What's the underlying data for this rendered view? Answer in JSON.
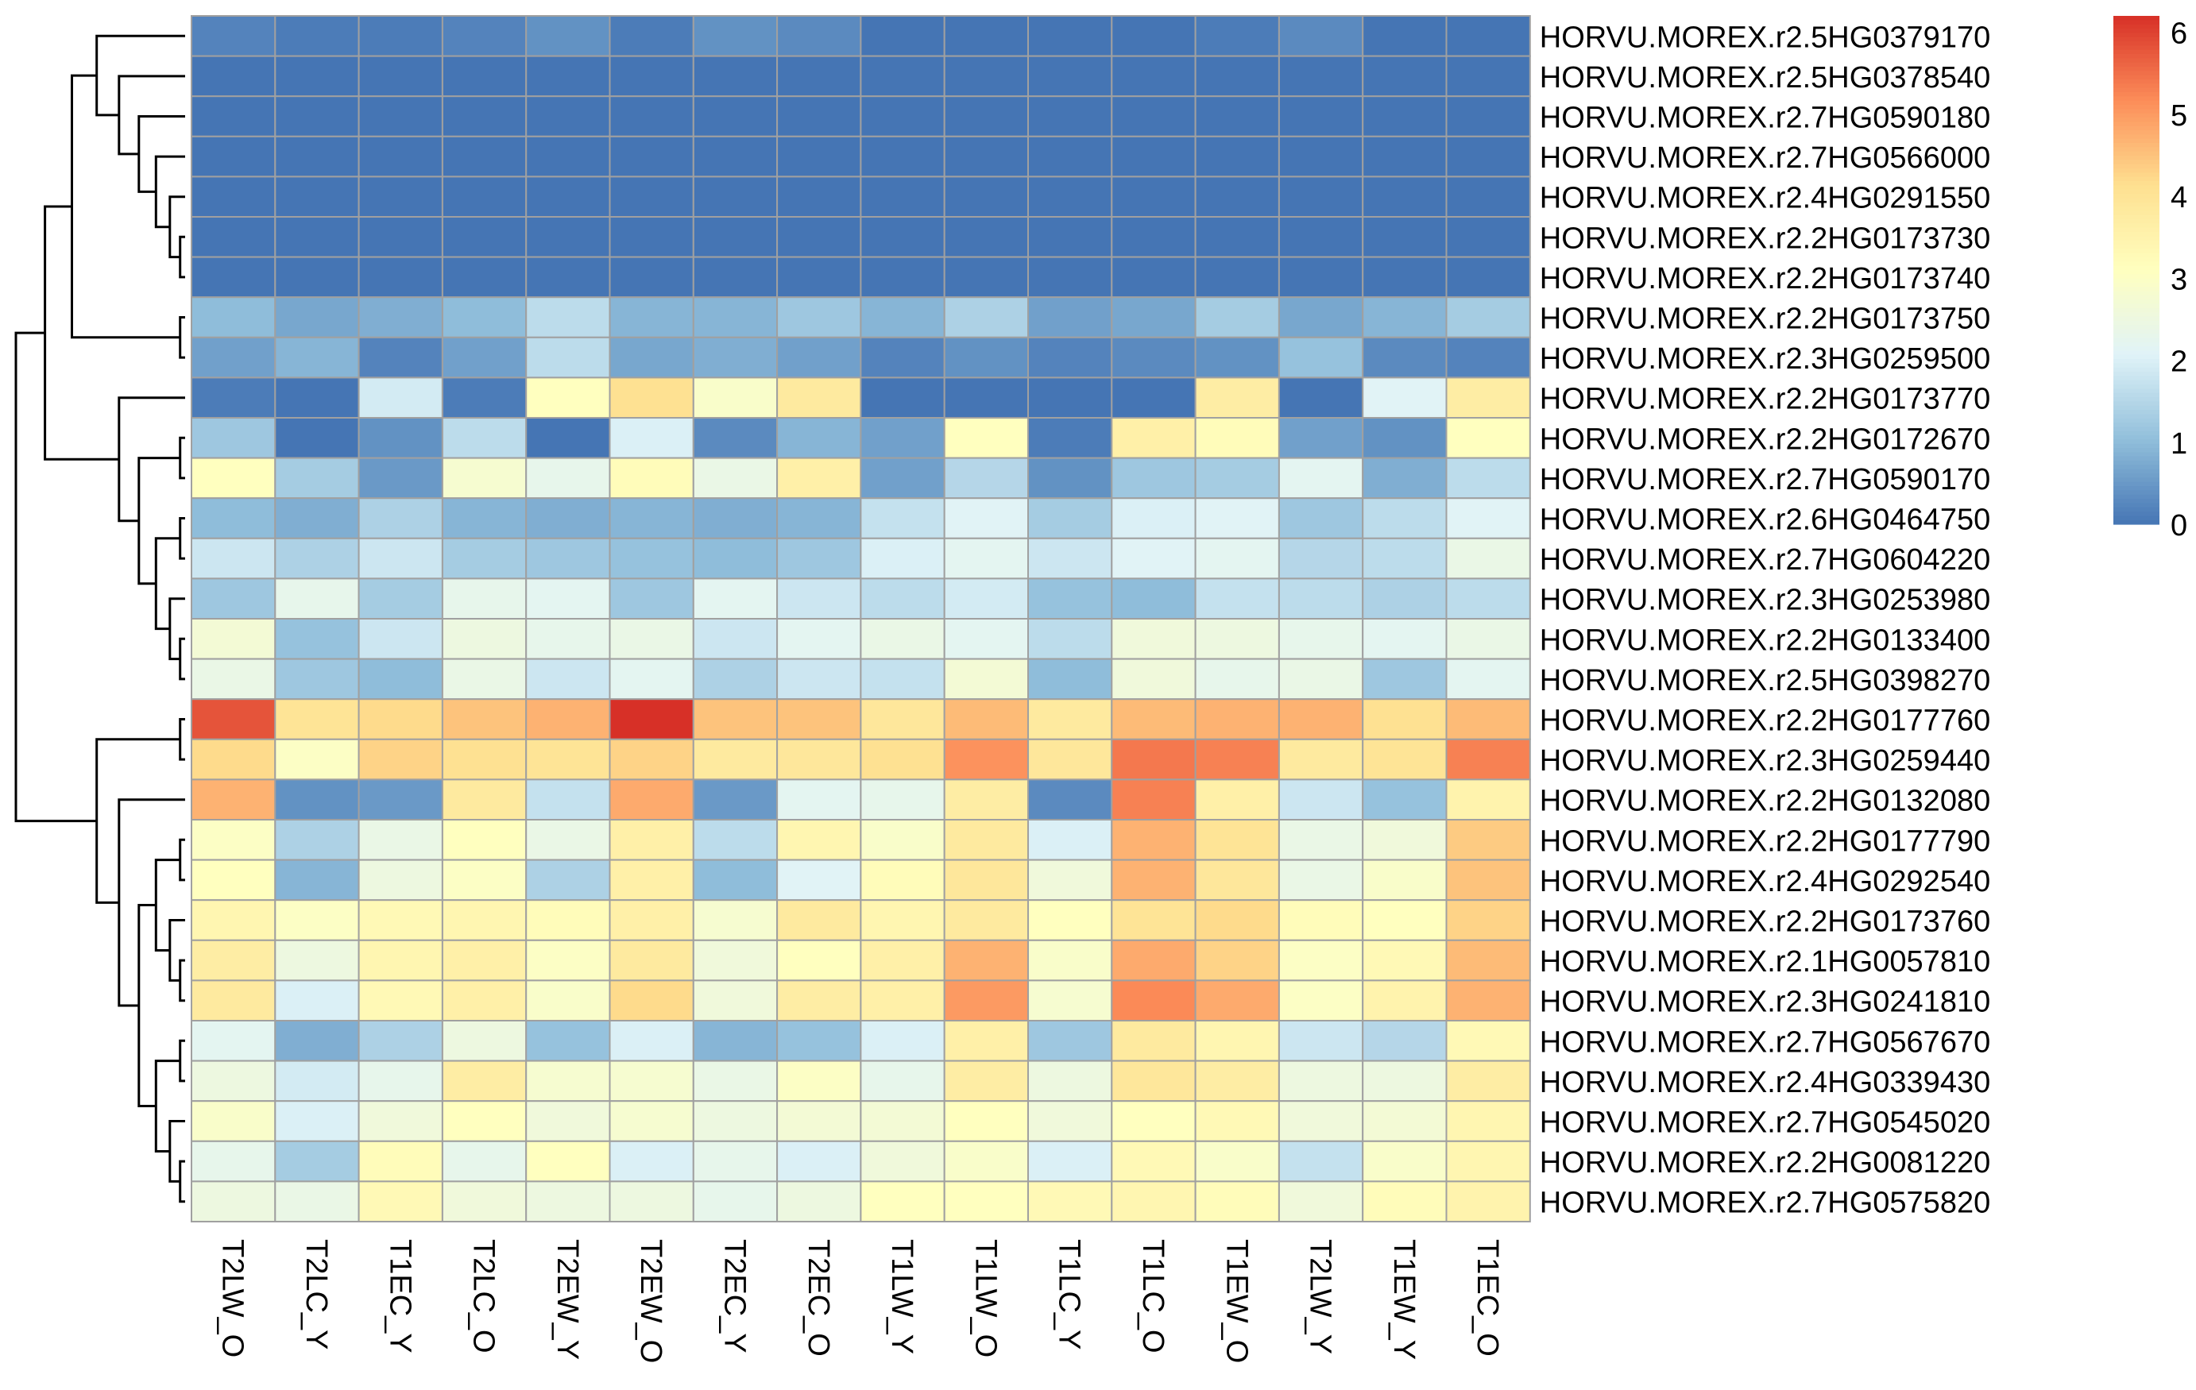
{
  "chart_data": {
    "type": "heatmap",
    "title": "",
    "xlabel": "",
    "ylabel": "",
    "columns": [
      "T2LW_O",
      "T2LC_Y",
      "T1EC_Y",
      "T2LC_O",
      "T2EW_Y",
      "T2EW_O",
      "T2EC_Y",
      "T2EC_O",
      "T1LW_Y",
      "T1LW_O",
      "T1LC_Y",
      "T1LC_O",
      "T1EW_O",
      "T2LW_Y",
      "T1EW_Y",
      "T1EC_O"
    ],
    "rows": [
      "HORVU.MOREX.r2.5HG0379170",
      "HORVU.MOREX.r2.5HG0378540",
      "HORVU.MOREX.r2.7HG0590180",
      "HORVU.MOREX.r2.7HG0566000",
      "HORVU.MOREX.r2.4HG0291550",
      "HORVU.MOREX.r2.2HG0173730",
      "HORVU.MOREX.r2.2HG0173740",
      "HORVU.MOREX.r2.2HG0173750",
      "HORVU.MOREX.r2.3HG0259500",
      "HORVU.MOREX.r2.2HG0173770",
      "HORVU.MOREX.r2.2HG0172670",
      "HORVU.MOREX.r2.7HG0590170",
      "HORVU.MOREX.r2.6HG0464750",
      "HORVU.MOREX.r2.7HG0604220",
      "HORVU.MOREX.r2.3HG0253980",
      "HORVU.MOREX.r2.2HG0133400",
      "HORVU.MOREX.r2.5HG0398270",
      "HORVU.MOREX.r2.2HG0177760",
      "HORVU.MOREX.r2.3HG0259440",
      "HORVU.MOREX.r2.2HG0132080",
      "HORVU.MOREX.r2.2HG0177790",
      "HORVU.MOREX.r2.4HG0292540",
      "HORVU.MOREX.r2.2HG0173760",
      "HORVU.MOREX.r2.1HG0057810",
      "HORVU.MOREX.r2.3HG0241810",
      "HORVU.MOREX.r2.7HG0567670",
      "HORVU.MOREX.r2.4HG0339430",
      "HORVU.MOREX.r2.7HG0545020",
      "HORVU.MOREX.r2.2HG0081220",
      "HORVU.MOREX.r2.7HG0575820"
    ],
    "values": [
      [
        0.2,
        0.1,
        0.1,
        0.2,
        0.4,
        0.1,
        0.4,
        0.3,
        0.0,
        0.0,
        0.0,
        0.0,
        0.1,
        0.3,
        0.0,
        0.0
      ],
      [
        0.0,
        0.0,
        0.0,
        0.0,
        0.0,
        0.0,
        0.0,
        0.0,
        0.0,
        0.0,
        0.0,
        0.0,
        0.0,
        0.0,
        0.0,
        0.0
      ],
      [
        0.0,
        0.0,
        0.0,
        0.0,
        0.0,
        0.0,
        0.0,
        0.0,
        0.0,
        0.0,
        0.0,
        0.0,
        0.0,
        0.0,
        0.0,
        0.0
      ],
      [
        0.0,
        0.0,
        0.0,
        0.0,
        0.0,
        0.0,
        0.0,
        0.0,
        0.0,
        0.0,
        0.0,
        0.0,
        0.0,
        0.0,
        0.0,
        0.0
      ],
      [
        0.0,
        0.0,
        0.0,
        0.0,
        0.0,
        0.0,
        0.0,
        0.0,
        0.0,
        0.0,
        0.0,
        0.0,
        0.0,
        0.0,
        0.0,
        0.0
      ],
      [
        0.0,
        0.0,
        0.0,
        0.0,
        0.0,
        0.0,
        0.0,
        0.0,
        0.0,
        0.0,
        0.0,
        0.0,
        0.0,
        0.0,
        0.0,
        0.0
      ],
      [
        0.0,
        0.0,
        0.0,
        0.0,
        0.0,
        0.0,
        0.0,
        0.0,
        0.0,
        0.0,
        0.0,
        0.0,
        0.0,
        0.0,
        0.0,
        0.0
      ],
      [
        1.0,
        0.7,
        0.8,
        1.0,
        1.6,
        0.9,
        0.9,
        1.2,
        0.9,
        1.4,
        0.6,
        0.7,
        1.3,
        0.7,
        0.9,
        1.3
      ],
      [
        0.6,
        0.9,
        0.2,
        0.6,
        1.6,
        0.7,
        0.8,
        0.6,
        0.2,
        0.4,
        0.2,
        0.3,
        0.4,
        1.1,
        0.3,
        0.2
      ],
      [
        0.1,
        0.0,
        1.9,
        0.1,
        3.1,
        4.1,
        2.9,
        3.8,
        0.0,
        0.0,
        0.0,
        0.0,
        3.7,
        0.0,
        2.1,
        3.7
      ],
      [
        1.2,
        0.0,
        0.4,
        1.6,
        0.0,
        2.0,
        0.3,
        0.9,
        0.6,
        3.1,
        0.1,
        3.6,
        3.2,
        0.6,
        0.4,
        3.1
      ],
      [
        3.1,
        1.3,
        0.5,
        2.8,
        2.3,
        3.2,
        2.4,
        3.6,
        0.6,
        1.5,
        0.4,
        1.2,
        1.3,
        2.2,
        0.8,
        1.6
      ],
      [
        1.0,
        0.8,
        1.4,
        0.9,
        0.8,
        0.9,
        0.8,
        0.9,
        1.7,
        2.1,
        1.3,
        2.0,
        2.1,
        1.2,
        1.6,
        2.1
      ],
      [
        1.8,
        1.4,
        1.8,
        1.3,
        1.2,
        1.1,
        1.0,
        1.2,
        2.0,
        2.2,
        1.8,
        2.1,
        2.2,
        1.5,
        1.6,
        2.4
      ],
      [
        1.2,
        2.3,
        1.3,
        2.3,
        2.2,
        1.2,
        2.2,
        1.8,
        1.6,
        1.9,
        1.1,
        1.0,
        1.7,
        1.6,
        1.4,
        1.6
      ],
      [
        2.7,
        1.1,
        1.8,
        2.5,
        2.3,
        2.4,
        1.8,
        2.2,
        2.4,
        2.2,
        1.6,
        2.6,
        2.5,
        2.3,
        2.2,
        2.4
      ],
      [
        2.4,
        1.2,
        1.0,
        2.4,
        1.8,
        2.2,
        1.4,
        1.8,
        1.7,
        2.7,
        1.0,
        2.6,
        2.3,
        2.4,
        1.2,
        2.2
      ],
      [
        5.8,
        4.0,
        4.2,
        4.5,
        4.7,
        6.2,
        4.5,
        4.5,
        3.9,
        4.6,
        3.8,
        4.6,
        4.7,
        4.7,
        4.1,
        4.6
      ],
      [
        4.2,
        3.0,
        4.3,
        4.1,
        4.0,
        4.3,
        3.8,
        3.9,
        4.1,
        5.1,
        3.9,
        5.4,
        5.3,
        3.8,
        4.0,
        5.3
      ],
      [
        4.7,
        0.4,
        0.5,
        3.8,
        1.7,
        4.8,
        0.5,
        2.2,
        2.3,
        3.7,
        0.3,
        5.3,
        3.6,
        1.8,
        1.1,
        3.5
      ],
      [
        3.0,
        1.4,
        2.4,
        3.1,
        2.4,
        3.6,
        1.6,
        3.4,
        2.9,
        3.8,
        2.0,
        4.7,
        4.0,
        2.4,
        2.6,
        4.4
      ],
      [
        3.1,
        0.9,
        2.5,
        3.0,
        1.4,
        3.6,
        1.0,
        2.1,
        3.2,
        3.9,
        2.6,
        4.7,
        3.9,
        2.4,
        2.9,
        4.5
      ],
      [
        3.4,
        3.0,
        3.3,
        3.4,
        3.2,
        3.6,
        2.8,
        3.8,
        3.4,
        3.8,
        3.1,
        4.0,
        4.2,
        3.2,
        3.1,
        4.3
      ],
      [
        3.7,
        2.5,
        3.4,
        3.6,
        3.0,
        3.8,
        2.6,
        3.1,
        3.6,
        4.7,
        2.9,
        4.8,
        4.3,
        3.0,
        3.3,
        4.6
      ],
      [
        3.8,
        2.0,
        3.3,
        3.6,
        2.9,
        4.2,
        2.6,
        3.7,
        3.6,
        5.0,
        2.8,
        5.2,
        4.8,
        3.0,
        3.5,
        4.7
      ],
      [
        2.2,
        0.8,
        1.4,
        2.5,
        1.1,
        2.0,
        0.9,
        1.1,
        2.0,
        3.6,
        1.2,
        3.8,
        3.4,
        1.8,
        1.5,
        3.3
      ],
      [
        2.5,
        1.9,
        2.3,
        3.7,
        2.8,
        2.8,
        2.4,
        3.0,
        2.3,
        3.7,
        2.5,
        3.9,
        3.7,
        2.5,
        2.5,
        3.7
      ],
      [
        2.9,
        2.0,
        2.6,
        3.1,
        2.6,
        2.8,
        2.5,
        2.7,
        2.7,
        3.1,
        2.6,
        3.1,
        3.3,
        2.6,
        2.7,
        3.4
      ],
      [
        2.3,
        1.3,
        3.2,
        2.3,
        3.1,
        2.0,
        2.3,
        2.0,
        2.6,
        2.9,
        2.0,
        3.3,
        2.9,
        1.7,
        2.9,
        3.4
      ],
      [
        2.5,
        2.4,
        3.3,
        2.6,
        2.5,
        2.5,
        2.3,
        2.5,
        3.1,
        3.1,
        3.3,
        3.4,
        3.2,
        2.6,
        3.2,
        3.5
      ]
    ],
    "colorbar": {
      "ticks": [
        "0",
        "1",
        "2",
        "3",
        "4",
        "5",
        "6"
      ],
      "range": [
        0,
        6.2
      ],
      "colors": [
        "#4575B4",
        "#91BFDB",
        "#E0F3F8",
        "#FFFFBF",
        "#FEE090",
        "#FC8D59",
        "#D73027"
      ]
    },
    "grid": true,
    "cell_border_color": "#A0A0A0",
    "row_dendrogram": "left",
    "legend_placement": "top-right"
  }
}
